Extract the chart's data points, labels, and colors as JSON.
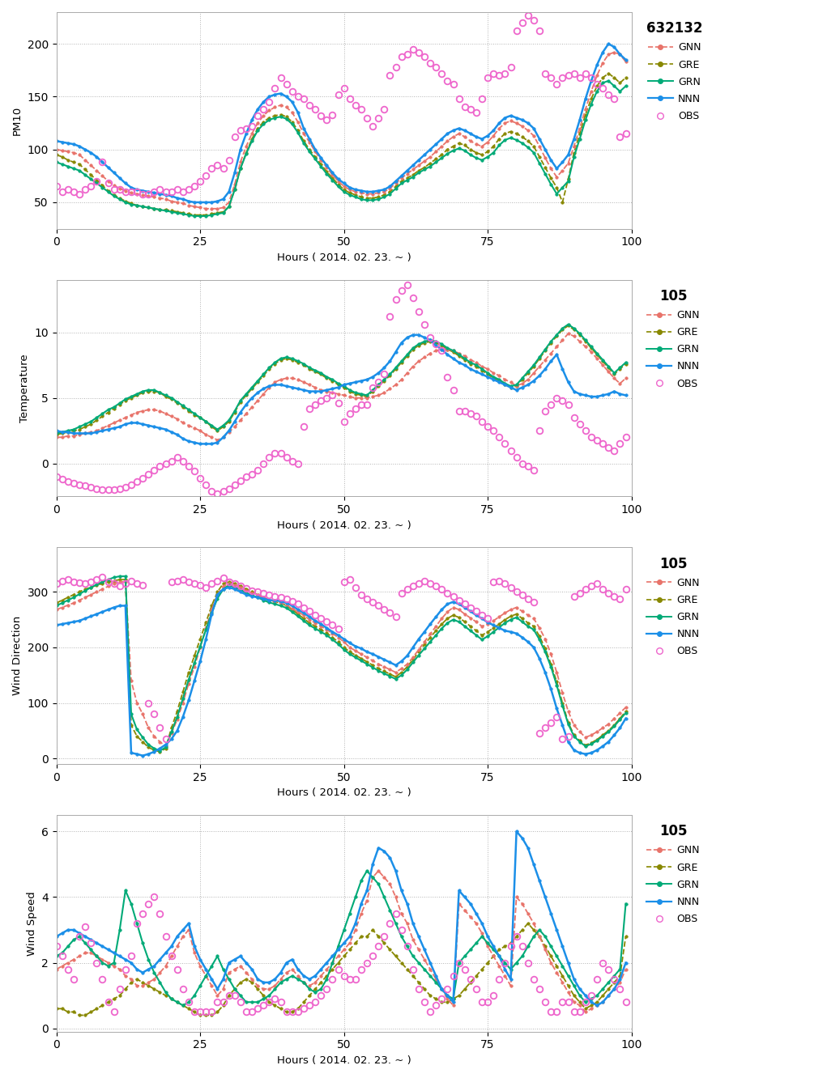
{
  "subplots": [
    {
      "ylabel": "PM10",
      "xlabel": "Hours ( 2014. 02. 23. ~ )",
      "legend_title": "632132",
      "ylim": [
        25,
        230
      ],
      "yticks": [
        50,
        100,
        150,
        200
      ],
      "xlim": [
        0,
        100
      ],
      "xticks": [
        0,
        25,
        50,
        75,
        100
      ]
    },
    {
      "ylabel": "Temperature",
      "xlabel": "Hours ( 2014. 02. 23. ~ )",
      "legend_title": "105",
      "ylim": [
        -2.5,
        14
      ],
      "yticks": [
        0,
        5,
        10
      ],
      "xlim": [
        0,
        100
      ],
      "xticks": [
        0,
        25,
        50,
        75,
        100
      ]
    },
    {
      "ylabel": "Wind Direction",
      "xlabel": "Hours ( 2014. 02. 23. ~ )",
      "legend_title": "105",
      "ylim": [
        -10,
        380
      ],
      "yticks": [
        0,
        100,
        200,
        300
      ],
      "xlim": [
        0,
        100
      ],
      "xticks": [
        0,
        25,
        50,
        75,
        100
      ]
    },
    {
      "ylabel": "Wind Speed",
      "xlabel": "Hours ( 2014. 02. 23. ~ )",
      "legend_title": "105",
      "ylim": [
        -0.1,
        6.5
      ],
      "yticks": [
        0,
        2,
        4,
        6
      ],
      "xlim": [
        0,
        100
      ],
      "xticks": [
        0,
        25,
        50,
        75,
        100
      ]
    }
  ],
  "colors": {
    "GNN": "#E8736A",
    "GRE": "#888800",
    "GRN": "#00AA77",
    "NNN": "#1B8FE8",
    "OBS": "#EE66CC"
  },
  "background": "#FFFFFF",
  "grid_color": "#AAAAAA"
}
